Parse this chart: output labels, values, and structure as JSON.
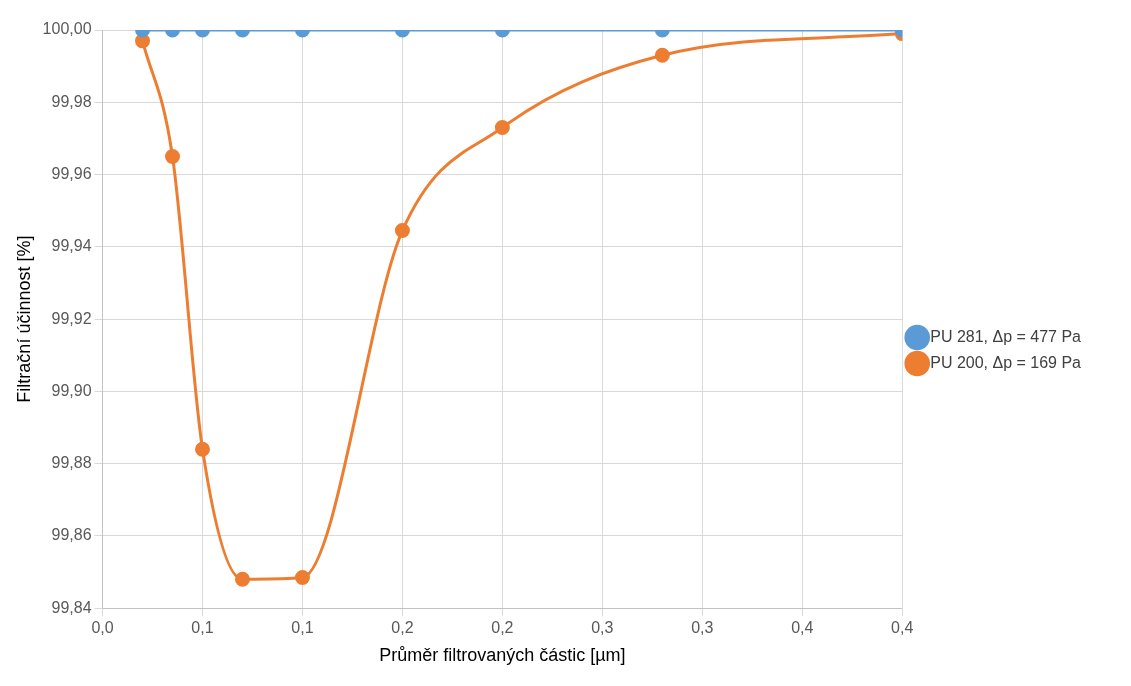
{
  "chart_data": {
    "type": "line",
    "xlabel": "Průměr filtrovaných částic [µm]",
    "ylabel": "Filtrační účinnost [%]",
    "xlim": [
      0,
      0.4
    ],
    "xticks": [
      {
        "value": 0,
        "label": "0,0"
      },
      {
        "value": 0.05,
        "label": "0,1"
      },
      {
        "value": 0.1,
        "label": "0,1"
      },
      {
        "value": 0.15,
        "label": "0,2"
      },
      {
        "value": 0.2,
        "label": "0,2"
      },
      {
        "value": 0.25,
        "label": "0,3"
      },
      {
        "value": 0.3,
        "label": "0,3"
      },
      {
        "value": 0.35,
        "label": "0,4"
      },
      {
        "value": 0.4,
        "label": "0,4"
      }
    ],
    "ylim": [
      99.84,
      100
    ],
    "yticks": [
      {
        "value": 99.84,
        "label": "99,84"
      },
      {
        "value": 99.86,
        "label": "99,86"
      },
      {
        "value": 99.88,
        "label": "99,88"
      },
      {
        "value": 99.9,
        "label": "99,90"
      },
      {
        "value": 99.92,
        "label": "99,92"
      },
      {
        "value": 99.94,
        "label": "99,94"
      },
      {
        "value": 99.96,
        "label": "99,96"
      },
      {
        "value": 99.98,
        "label": "99,98"
      },
      {
        "value": 100,
        "label": "100,00"
      }
    ],
    "x": [
      0.02,
      0.035,
      0.05,
      0.07,
      0.1,
      0.15,
      0.2,
      0.28,
      0.4
    ],
    "series": [
      {
        "name": "PU 281, Δp = 477 Pa",
        "color": "#5b9bd5",
        "values": [
          100,
          100,
          100,
          100,
          100,
          100,
          100,
          100,
          100
        ]
      },
      {
        "name": "PU 200, Δp = 169 Pa",
        "color": "#ed7d31",
        "values": [
          99.997,
          99.965,
          99.884,
          99.848,
          99.8485,
          99.9445,
          99.973,
          99.993,
          99.999
        ]
      }
    ],
    "grid": true,
    "legend": "right",
    "marker": "circle",
    "line_style": "solid"
  }
}
